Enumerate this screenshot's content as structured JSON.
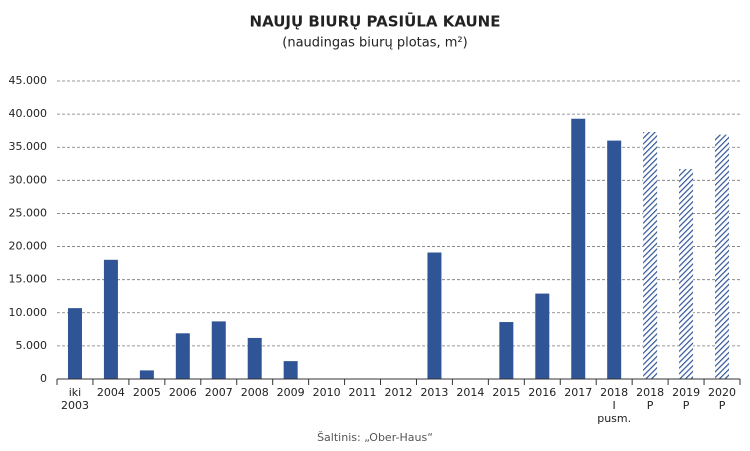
{
  "chart_data": {
    "type": "bar",
    "title": "NAUJŲ BIURŲ PASIŪLA KAUNE",
    "subtitle": "(naudingas biurų plotas, m²)",
    "source": "Šaltinis: „Ober-Haus“",
    "categories": [
      "iki 2003",
      "2004",
      "2005",
      "2006",
      "2007",
      "2008",
      "2009",
      "2010",
      "2011",
      "2012",
      "2013",
      "2014",
      "2015",
      "2016",
      "2017",
      "2018 I pusm.",
      "2018 P",
      "2019 P",
      "2020 P"
    ],
    "values": [
      10700,
      18000,
      1300,
      6900,
      8700,
      6200,
      2700,
      0,
      0,
      0,
      19100,
      0,
      8600,
      12900,
      39300,
      36000,
      37300,
      31700,
      36900
    ],
    "bar_styles": [
      "solid",
      "solid",
      "solid",
      "solid",
      "solid",
      "solid",
      "solid",
      "solid",
      "solid",
      "solid",
      "solid",
      "solid",
      "solid",
      "solid",
      "solid",
      "solid",
      "hatched",
      "hatched",
      "hatched"
    ],
    "color": "#2f5597",
    "ylim": [
      0,
      45000
    ],
    "yticks": [
      0,
      {
        "value": 5000,
        "label": "5.000"
      },
      {
        "value": 10000,
        "label": "10.000"
      },
      {
        "value": 15000,
        "label": "15.000"
      },
      {
        "value": 20000,
        "label": "20.000"
      },
      {
        "value": 25000,
        "label": "25.000"
      },
      {
        "value": 30000,
        "label": "30.000"
      },
      {
        "value": 35000,
        "label": "35.000"
      },
      {
        "value": 40000,
        "label": "40.000"
      },
      {
        "value": 45000,
        "label": "45.000"
      }
    ],
    "grid": true
  }
}
